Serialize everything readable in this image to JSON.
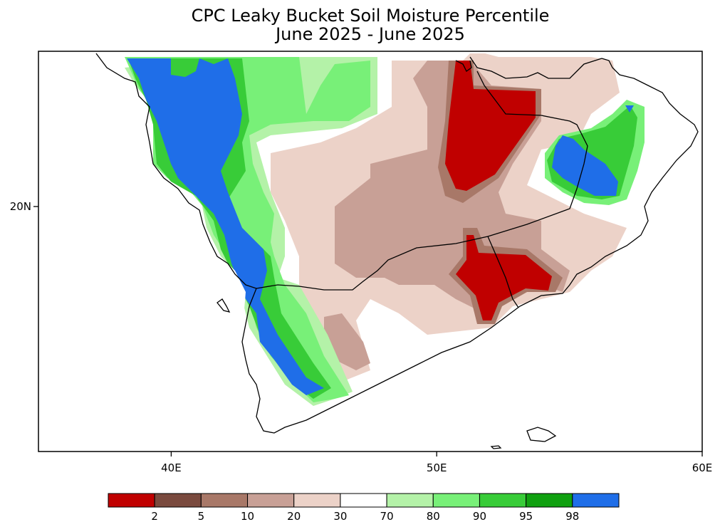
{
  "title": {
    "line1": "CPC Leaky Bucket Soil Moisture Percentile",
    "line2": "June 2025 - June 2025"
  },
  "axes": {
    "x_ticks": [
      {
        "label": "40E",
        "lon": 40
      },
      {
        "label": "50E",
        "lon": 50
      },
      {
        "label": "60E",
        "lon": 60
      }
    ],
    "y_ticks": [
      {
        "label": "20N",
        "lat": 20
      }
    ]
  },
  "colorbar": {
    "colors": [
      "#c00000",
      "#7a4a3e",
      "#a87868",
      "#c8a096",
      "#ecd2c8",
      "#ffffff",
      "#b4f2a8",
      "#78f078",
      "#38cc38",
      "#10a010",
      "#1f6ee8"
    ],
    "labels": [
      "2",
      "5",
      "10",
      "20",
      "30",
      "70",
      "80",
      "90",
      "95",
      "98"
    ]
  }
}
